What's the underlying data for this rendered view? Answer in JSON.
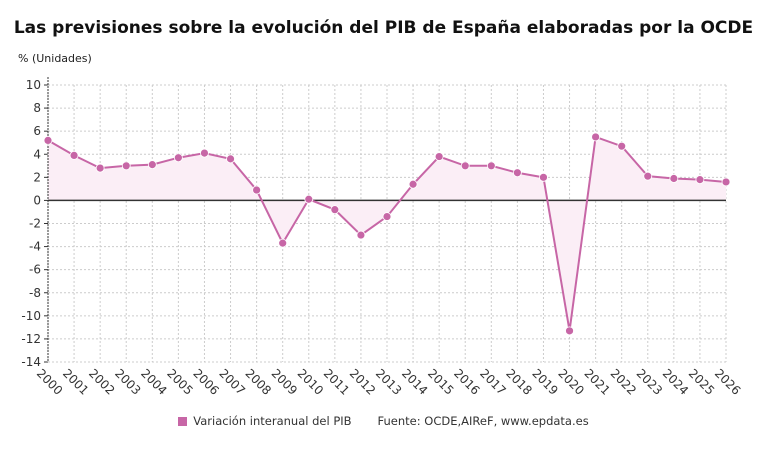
{
  "chart_data": {
    "type": "line",
    "title": "Las previsiones sobre la evolución del PIB de España elaboradas por la OCDE",
    "ylabel": "% (Unidades)",
    "xlabel": "",
    "x": [
      2000,
      2001,
      2002,
      2003,
      2004,
      2005,
      2006,
      2007,
      2008,
      2009,
      2010,
      2011,
      2012,
      2013,
      2014,
      2015,
      2016,
      2017,
      2018,
      2019,
      2020,
      2021,
      2022,
      2023,
      2024,
      2025,
      2026
    ],
    "series": [
      {
        "name": "Variación interanual del PIB",
        "values": [
          5.2,
          3.9,
          2.8,
          3.0,
          3.1,
          3.7,
          4.1,
          3.6,
          0.9,
          -3.7,
          0.1,
          -0.8,
          -3.0,
          -1.4,
          1.4,
          3.8,
          3.0,
          3.0,
          2.4,
          2.0,
          -11.3,
          5.5,
          4.7,
          2.1,
          1.9,
          1.8,
          1.6
        ]
      }
    ],
    "ylim": [
      -14,
      10
    ],
    "yticks": [
      10,
      8,
      6,
      4,
      2,
      0,
      -2,
      -4,
      -6,
      -8,
      -10,
      -12,
      -14
    ],
    "grid": true,
    "legend_position": "bottom",
    "colors": {
      "line": "#c766a6",
      "fill": "#fbeef6",
      "zero_line": "#333333"
    }
  },
  "source": "Fuente: OCDE,AIReF, www.epdata.es"
}
